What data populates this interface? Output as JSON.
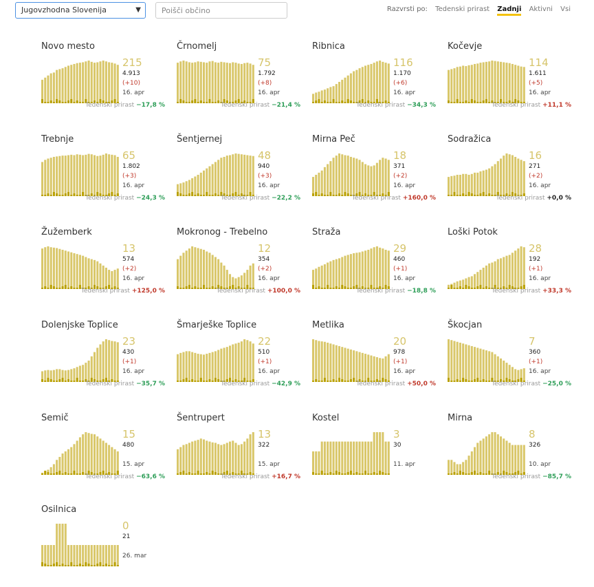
{
  "header": {
    "region": "Jugovzhodna Slovenija",
    "search_placeholder": "Poišči občino",
    "sort_label": "Razvrsti po:",
    "sort_options": [
      "Tedenski prirast",
      "Zadnji",
      "Aktivni",
      "Vsi"
    ],
    "sort_active": 1,
    "weekly_label": "Tedenski prirast"
  },
  "colors": {
    "bar": "#d9c76a",
    "bar_dark": "#b9a000",
    "big_number": "#d6c46a",
    "down": "#2e9e58",
    "up": "#c0392b"
  },
  "cards": [
    {
      "name": "Novo mesto",
      "active": "215",
      "total": "4.913",
      "delta": "(+10)",
      "date": "16. apr",
      "weekly": "−17,8 %",
      "trend": "down"
    },
    {
      "name": "Črnomelj",
      "active": "75",
      "total": "1.792",
      "delta": "(+8)",
      "date": "16. apr",
      "weekly": "−21,4 %",
      "trend": "down"
    },
    {
      "name": "Ribnica",
      "active": "116",
      "total": "1.170",
      "delta": "(+6)",
      "date": "16. apr",
      "weekly": "−34,3 %",
      "trend": "down"
    },
    {
      "name": "Kočevje",
      "active": "114",
      "total": "1.611",
      "delta": "(+5)",
      "date": "16. apr",
      "weekly": "+11,1 %",
      "trend": "up"
    },
    {
      "name": "Trebnje",
      "active": "65",
      "total": "1.802",
      "delta": "(+3)",
      "date": "16. apr",
      "weekly": "−24,3 %",
      "trend": "down"
    },
    {
      "name": "Šentjernej",
      "active": "48",
      "total": "940",
      "delta": "(+3)",
      "date": "16. apr",
      "weekly": "−22,2 %",
      "trend": "down"
    },
    {
      "name": "Mirna Peč",
      "active": "18",
      "total": "371",
      "delta": "(+2)",
      "date": "16. apr",
      "weekly": "+160,0 %",
      "trend": "up"
    },
    {
      "name": "Sodražica",
      "active": "16",
      "total": "271",
      "delta": "(+2)",
      "date": "16. apr",
      "weekly": "+0,0 %",
      "trend": "zero"
    },
    {
      "name": "Žužemberk",
      "active": "13",
      "total": "574",
      "delta": "(+2)",
      "date": "16. apr",
      "weekly": "+125,0 %",
      "trend": "up"
    },
    {
      "name": "Mokronog - Trebelno",
      "active": "12",
      "total": "354",
      "delta": "(+2)",
      "date": "16. apr",
      "weekly": "+100,0 %",
      "trend": "up"
    },
    {
      "name": "Straža",
      "active": "29",
      "total": "460",
      "delta": "(+1)",
      "date": "16. apr",
      "weekly": "−18,8 %",
      "trend": "down"
    },
    {
      "name": "Loški Potok",
      "active": "28",
      "total": "192",
      "delta": "(+1)",
      "date": "16. apr",
      "weekly": "+33,3 %",
      "trend": "up"
    },
    {
      "name": "Dolenjske Toplice",
      "active": "23",
      "total": "430",
      "delta": "(+1)",
      "date": "16. apr",
      "weekly": "−35,7 %",
      "trend": "down"
    },
    {
      "name": "Šmarješke Toplice",
      "active": "22",
      "total": "510",
      "delta": "(+1)",
      "date": "16. apr",
      "weekly": "−42,9 %",
      "trend": "down"
    },
    {
      "name": "Metlika",
      "active": "20",
      "total": "978",
      "delta": "(+1)",
      "date": "16. apr",
      "weekly": "+50,0 %",
      "trend": "up"
    },
    {
      "name": "Škocjan",
      "active": "7",
      "total": "360",
      "delta": "(+1)",
      "date": "16. apr",
      "weekly": "−25,0 %",
      "trend": "down"
    },
    {
      "name": "Semič",
      "active": "15",
      "total": "480",
      "delta": "",
      "date": "15. apr",
      "weekly": "−63,6 %",
      "trend": "down"
    },
    {
      "name": "Šentrupert",
      "active": "13",
      "total": "322",
      "delta": "",
      "date": "15. apr",
      "weekly": "+16,7 %",
      "trend": "up"
    },
    {
      "name": "Kostel",
      "active": "3",
      "total": "30",
      "delta": "",
      "date": "11. apr",
      "weekly": "",
      "trend": ""
    },
    {
      "name": "Mirna",
      "active": "8",
      "total": "326",
      "delta": "",
      "date": "10. apr",
      "weekly": "−85,7 %",
      "trend": "down"
    },
    {
      "name": "Osilnica",
      "active": "0",
      "total": "21",
      "delta": "",
      "date": "26. mar",
      "weekly": "",
      "trend": ""
    }
  ],
  "chart_data": {
    "type": "bar",
    "title": "",
    "xlabel": "",
    "ylabel": "",
    "series_per_municipality": [
      {
        "name": "Novo mesto",
        "values": [
          0.55,
          0.6,
          0.65,
          0.7,
          0.72,
          0.78,
          0.8,
          0.82,
          0.85,
          0.88,
          0.9,
          0.92,
          0.94,
          0.95,
          0.96,
          0.98,
          1.0,
          0.97,
          0.95,
          0.96,
          0.98,
          1.0,
          0.98,
          0.96,
          0.95,
          0.93,
          0.9
        ]
      },
      {
        "name": "Črnomelj",
        "values": [
          0.95,
          0.98,
          1.0,
          0.98,
          0.96,
          0.95,
          0.96,
          0.98,
          0.97,
          0.96,
          0.95,
          0.98,
          0.99,
          0.96,
          0.95,
          0.97,
          0.96,
          0.95,
          0.94,
          0.96,
          0.95,
          0.93,
          0.92,
          0.94,
          0.95,
          0.93,
          0.9
        ]
      },
      {
        "name": "Ribnica",
        "values": [
          0.22,
          0.25,
          0.27,
          0.3,
          0.32,
          0.35,
          0.38,
          0.4,
          0.45,
          0.5,
          0.55,
          0.6,
          0.65,
          0.7,
          0.75,
          0.78,
          0.82,
          0.85,
          0.88,
          0.9,
          0.92,
          0.95,
          0.98,
          1.0,
          0.97,
          0.95,
          0.93
        ]
      },
      {
        "name": "Kočevje",
        "values": [
          0.78,
          0.8,
          0.82,
          0.85,
          0.86,
          0.88,
          0.87,
          0.89,
          0.9,
          0.92,
          0.93,
          0.95,
          0.96,
          0.97,
          0.98,
          1.0,
          0.99,
          0.98,
          0.97,
          0.96,
          0.95,
          0.94,
          0.92,
          0.9,
          0.88,
          0.86,
          0.85
        ]
      },
      {
        "name": "Trebnje",
        "values": [
          0.8,
          0.85,
          0.88,
          0.9,
          0.92,
          0.93,
          0.94,
          0.95,
          0.95,
          0.96,
          0.97,
          0.96,
          0.98,
          0.97,
          0.96,
          0.97,
          0.99,
          0.98,
          0.96,
          0.94,
          0.95,
          0.97,
          1.0,
          0.98,
          0.97,
          0.96,
          0.92
        ]
      },
      {
        "name": "Šentjernej",
        "values": [
          0.28,
          0.3,
          0.32,
          0.35,
          0.38,
          0.42,
          0.46,
          0.5,
          0.55,
          0.6,
          0.65,
          0.7,
          0.75,
          0.8,
          0.85,
          0.9,
          0.92,
          0.95,
          0.96,
          0.98,
          1.0,
          0.99,
          0.98,
          0.97,
          0.96,
          0.95,
          0.94
        ]
      },
      {
        "name": "Mirna Peč",
        "values": [
          0.45,
          0.5,
          0.55,
          0.6,
          0.68,
          0.75,
          0.82,
          0.9,
          0.95,
          1.0,
          0.98,
          0.96,
          0.95,
          0.92,
          0.9,
          0.88,
          0.85,
          0.8,
          0.75,
          0.72,
          0.7,
          0.72,
          0.78,
          0.85,
          0.9,
          0.88,
          0.85
        ]
      },
      {
        "name": "Sodražica",
        "values": [
          0.45,
          0.47,
          0.48,
          0.5,
          0.5,
          0.52,
          0.52,
          0.5,
          0.52,
          0.55,
          0.55,
          0.58,
          0.6,
          0.62,
          0.65,
          0.7,
          0.75,
          0.82,
          0.88,
          0.95,
          1.0,
          0.98,
          0.96,
          0.92,
          0.88,
          0.85,
          0.82
        ]
      },
      {
        "name": "Žužemberk",
        "values": [
          0.95,
          0.98,
          1.0,
          0.98,
          0.97,
          0.96,
          0.94,
          0.92,
          0.9,
          0.88,
          0.86,
          0.84,
          0.82,
          0.8,
          0.78,
          0.75,
          0.72,
          0.7,
          0.68,
          0.65,
          0.6,
          0.55,
          0.5,
          0.45,
          0.42,
          0.45,
          0.48
        ]
      },
      {
        "name": "Mokronog - Trebelno",
        "values": [
          0.7,
          0.78,
          0.85,
          0.9,
          0.95,
          1.0,
          0.98,
          0.96,
          0.94,
          0.92,
          0.88,
          0.85,
          0.8,
          0.75,
          0.7,
          0.62,
          0.55,
          0.45,
          0.35,
          0.28,
          0.25,
          0.28,
          0.32,
          0.38,
          0.45,
          0.55,
          0.6
        ]
      },
      {
        "name": "Straža",
        "values": [
          0.45,
          0.48,
          0.52,
          0.55,
          0.58,
          0.62,
          0.65,
          0.68,
          0.7,
          0.72,
          0.75,
          0.78,
          0.8,
          0.82,
          0.84,
          0.85,
          0.86,
          0.88,
          0.9,
          0.92,
          0.95,
          0.98,
          1.0,
          0.97,
          0.95,
          0.92,
          0.9
        ]
      },
      {
        "name": "Loški Potok",
        "values": [
          0.1,
          0.12,
          0.15,
          0.18,
          0.2,
          0.22,
          0.25,
          0.28,
          0.3,
          0.35,
          0.4,
          0.45,
          0.5,
          0.55,
          0.6,
          0.62,
          0.65,
          0.7,
          0.72,
          0.75,
          0.78,
          0.8,
          0.85,
          0.9,
          0.95,
          1.0,
          0.98
        ]
      },
      {
        "name": "Dolenjske Toplice",
        "values": [
          0.25,
          0.27,
          0.28,
          0.27,
          0.28,
          0.3,
          0.3,
          0.28,
          0.27,
          0.28,
          0.3,
          0.32,
          0.35,
          0.38,
          0.4,
          0.45,
          0.5,
          0.6,
          0.7,
          0.8,
          0.88,
          0.95,
          1.0,
          0.98,
          0.96,
          0.95,
          0.93
        ]
      },
      {
        "name": "Šmarješke Toplice",
        "values": [
          0.65,
          0.68,
          0.7,
          0.72,
          0.72,
          0.7,
          0.68,
          0.66,
          0.65,
          0.64,
          0.66,
          0.68,
          0.7,
          0.72,
          0.75,
          0.78,
          0.8,
          0.82,
          0.85,
          0.88,
          0.9,
          0.92,
          0.95,
          1.0,
          0.98,
          0.95,
          0.9
        ]
      },
      {
        "name": "Metlika",
        "values": [
          1.0,
          0.98,
          0.96,
          0.95,
          0.94,
          0.92,
          0.9,
          0.88,
          0.86,
          0.84,
          0.82,
          0.8,
          0.78,
          0.76,
          0.74,
          0.72,
          0.7,
          0.68,
          0.66,
          0.64,
          0.62,
          0.6,
          0.58,
          0.56,
          0.55,
          0.6,
          0.65
        ]
      },
      {
        "name": "Škocjan",
        "values": [
          1.0,
          0.98,
          0.96,
          0.94,
          0.92,
          0.9,
          0.88,
          0.86,
          0.84,
          0.82,
          0.8,
          0.78,
          0.76,
          0.74,
          0.72,
          0.7,
          0.65,
          0.6,
          0.55,
          0.5,
          0.45,
          0.4,
          0.35,
          0.3,
          0.28,
          0.3,
          0.32
        ]
      },
      {
        "name": "Semič",
        "values": [
          0.05,
          0.08,
          0.12,
          0.18,
          0.25,
          0.35,
          0.42,
          0.5,
          0.55,
          0.6,
          0.65,
          0.72,
          0.8,
          0.88,
          0.95,
          1.0,
          0.98,
          0.96,
          0.95,
          0.9,
          0.85,
          0.8,
          0.75,
          0.7,
          0.65,
          0.6,
          0.55
        ]
      },
      {
        "name": "Šentrupert",
        "values": [
          0.6,
          0.65,
          0.7,
          0.72,
          0.75,
          0.78,
          0.8,
          0.82,
          0.85,
          0.83,
          0.8,
          0.78,
          0.76,
          0.75,
          0.72,
          0.7,
          0.72,
          0.75,
          0.78,
          0.8,
          0.75,
          0.7,
          0.72,
          0.78,
          0.85,
          0.95,
          1.0
        ]
      },
      {
        "name": "Kostel",
        "values": [
          0.55,
          0.55,
          0.55,
          0.78,
          0.78,
          0.78,
          0.78,
          0.78,
          0.78,
          0.78,
          0.78,
          0.78,
          0.78,
          0.78,
          0.78,
          0.78,
          0.78,
          0.78,
          0.78,
          0.78,
          0.78,
          1.0,
          1.0,
          1.0,
          1.0,
          0.78,
          0.78
        ]
      },
      {
        "name": "Mirna",
        "values": [
          0.35,
          0.35,
          0.3,
          0.25,
          0.25,
          0.3,
          0.35,
          0.45,
          0.55,
          0.65,
          0.75,
          0.8,
          0.85,
          0.9,
          0.95,
          1.0,
          1.0,
          0.95,
          0.9,
          0.85,
          0.8,
          0.75,
          0.7,
          0.7,
          0.7,
          0.7,
          0.7
        ]
      },
      {
        "name": "Osilnica",
        "values": [
          0.5,
          0.5,
          0.5,
          0.5,
          0.5,
          1.0,
          1.0,
          1.0,
          1.0,
          0.5,
          0.5,
          0.5,
          0.5,
          0.5,
          0.5,
          0.5,
          0.5,
          0.5,
          0.5,
          0.5,
          0.5,
          0.5,
          0.5,
          0.5,
          0.5,
          0.5,
          0.5
        ]
      }
    ]
  }
}
